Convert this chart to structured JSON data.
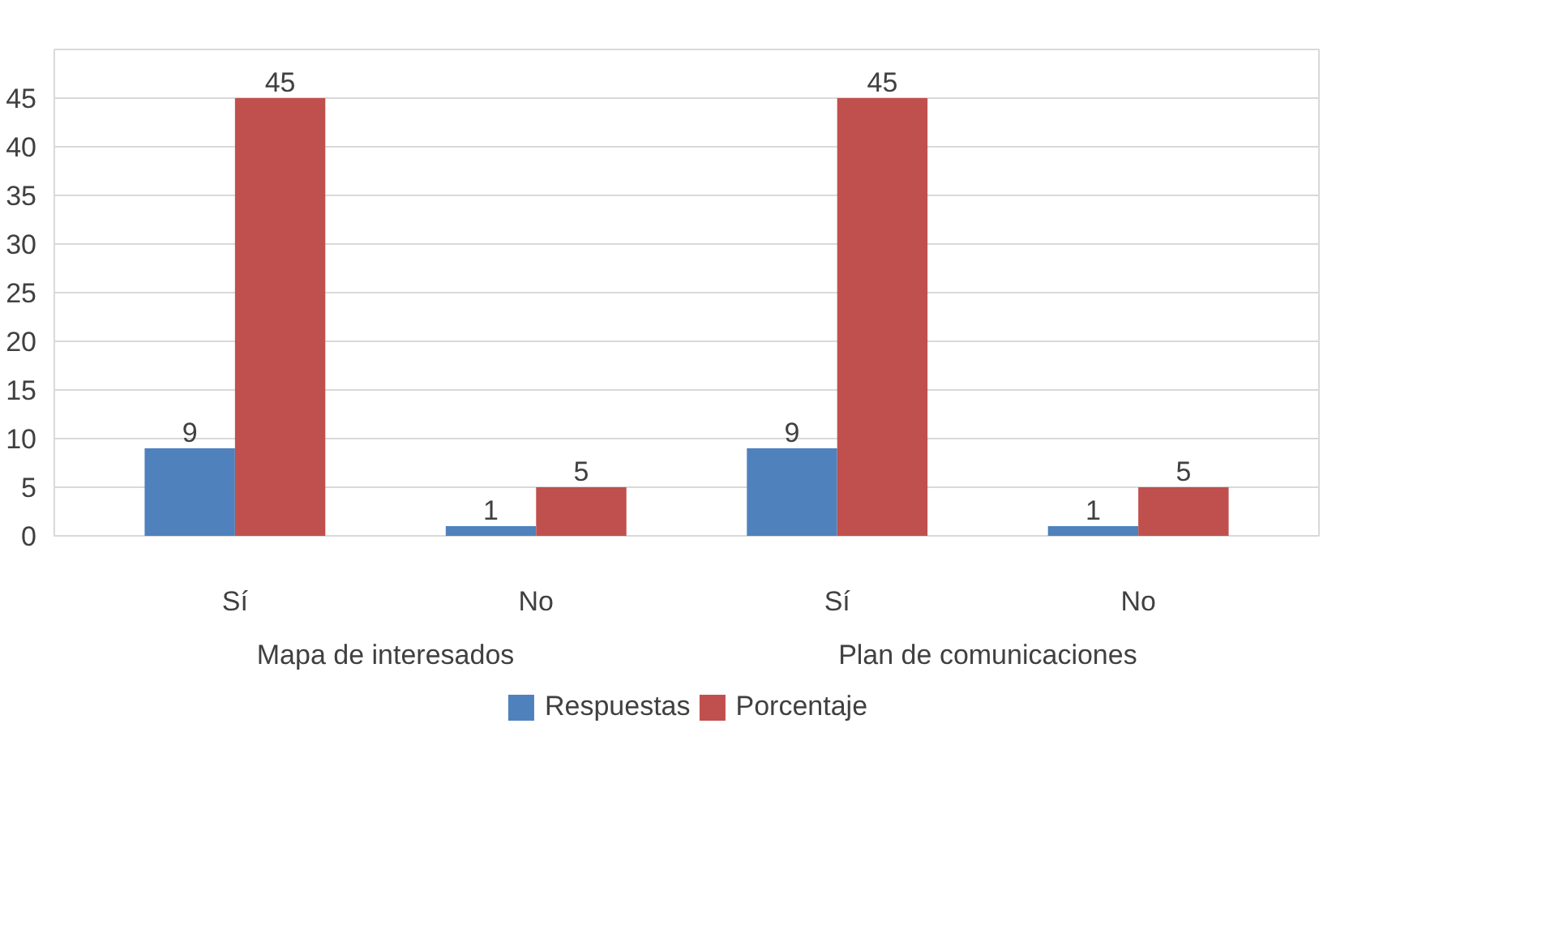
{
  "chart_data": {
    "type": "bar",
    "categories": [
      "Sí",
      "No",
      "Sí",
      "No"
    ],
    "series": [
      {
        "name": "Respuestas",
        "color": "#4f81bd",
        "values": [
          9,
          1,
          9,
          1
        ]
      },
      {
        "name": "Porcentaje",
        "color": "#c0504d",
        "values": [
          45,
          5,
          45,
          5
        ]
      }
    ],
    "ylim": [
      0,
      50
    ],
    "yticks": [
      0,
      5,
      10,
      15,
      20,
      25,
      30,
      35,
      40,
      45,
      {
        "value": 50,
        "label": null
      }
    ],
    "grid": "y",
    "legend": "bottom",
    "data_labels": true,
    "annotations": [
      "Mapa de interesados",
      "Plan de comunicaciones"
    ]
  }
}
